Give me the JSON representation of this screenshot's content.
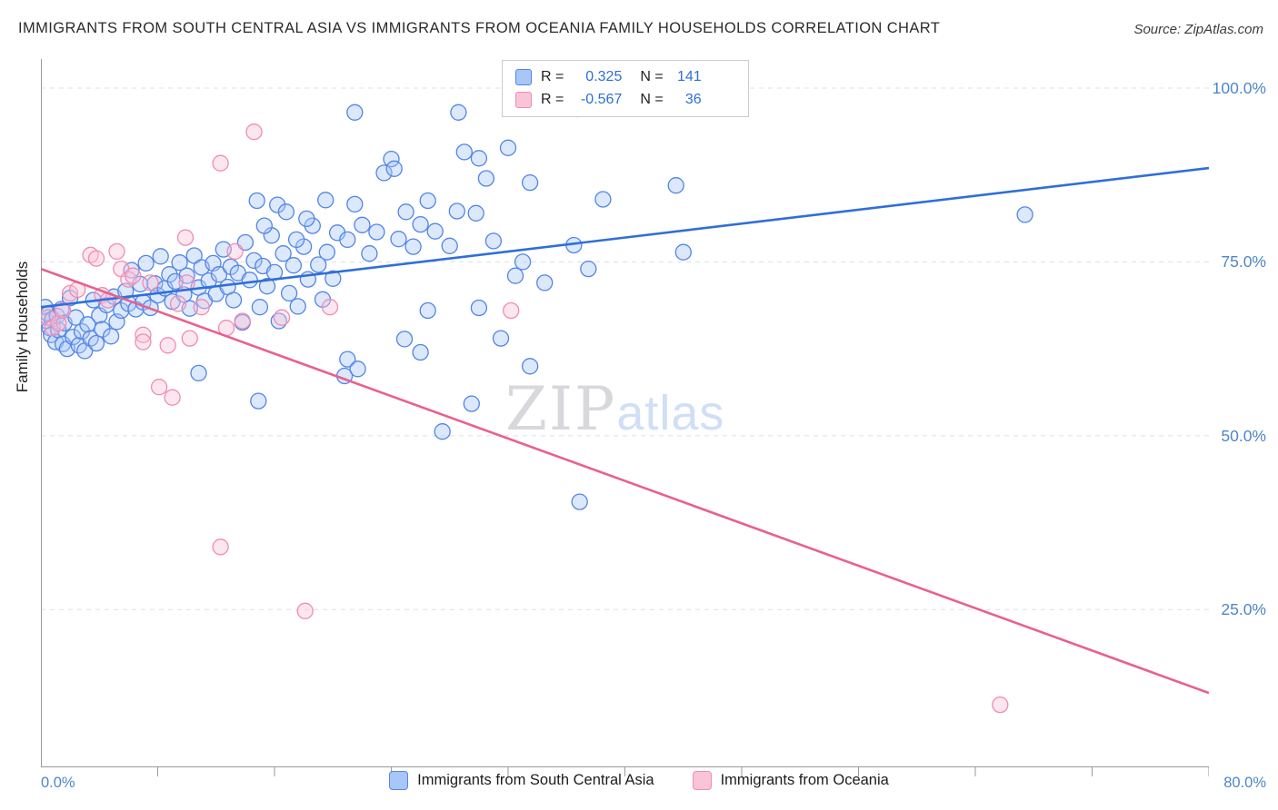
{
  "header": {
    "title": "IMMIGRANTS FROM SOUTH CENTRAL ASIA VS IMMIGRANTS FROM OCEANIA FAMILY HOUSEHOLDS CORRELATION CHART",
    "source": "Source: ZipAtlas.com"
  },
  "axes": {
    "y_label": "Family Households",
    "y_ticks": [
      "100.0%",
      "75.0%",
      "50.0%",
      "25.0%"
    ],
    "x_min_label": "0.0%",
    "x_max_label": "80.0%"
  },
  "legend_box": {
    "rows": [
      {
        "r_label": "R =",
        "r_value": "0.325",
        "n_label": "N =",
        "n_value": "141"
      },
      {
        "r_label": "R =",
        "r_value": "-0.567",
        "n_label": "N =",
        "n_value": "36"
      }
    ]
  },
  "bottom_legend": {
    "items": [
      {
        "label": "Immigrants from South Central Asia"
      },
      {
        "label": "Immigrants from Oceania"
      }
    ]
  },
  "watermark": {
    "part1": "ZIP",
    "part2": "atlas"
  },
  "colors": {
    "blue_fill": "#A8C6F8",
    "blue_stroke": "#5285E8",
    "blue_line": "#2F6FD8",
    "pink_fill": "#F9C4D8",
    "pink_stroke": "#F08BB4",
    "pink_line": "#E8618C",
    "stat_value_blue": "#2E6FD6",
    "axis_label_blue": "#4E86C8",
    "grid": "#DFDFDF",
    "axis": "#9A9A9A"
  },
  "chart_data": {
    "type": "scatter",
    "title": "Immigrants from South Central Asia vs Immigrants from Oceania Family Households Correlation Chart",
    "xlabel": "",
    "ylabel": "Family Households",
    "xlim": [
      0,
      80
    ],
    "ylim": [
      0,
      100
    ],
    "x_unit": "%",
    "y_unit": "%",
    "grid": "horizontal-dashed",
    "y_gridlines": [
      100,
      75,
      50,
      25
    ],
    "legend_position": "top-center",
    "series": [
      {
        "name": "Immigrants from South Central Asia",
        "R": 0.325,
        "N": 141,
        "fill_color": "#A8C6F8",
        "stroke_color": "#5285E8",
        "points": [
          [
            0.3,
            68.5
          ],
          [
            0.4,
            66.5
          ],
          [
            0.5,
            67.5
          ],
          [
            0.6,
            65.5
          ],
          [
            0.7,
            64.5
          ],
          [
            0.8,
            66.8
          ],
          [
            1.0,
            63.5
          ],
          [
            1.1,
            67.2
          ],
          [
            1.2,
            65.2
          ],
          [
            1.4,
            68.2
          ],
          [
            1.5,
            63.2
          ],
          [
            1.6,
            66.2
          ],
          [
            1.8,
            62.5
          ],
          [
            2.0,
            69.8
          ],
          [
            2.2,
            64.2
          ],
          [
            2.4,
            67.0
          ],
          [
            2.6,
            63.0
          ],
          [
            2.8,
            65.0
          ],
          [
            3.0,
            62.2
          ],
          [
            3.2,
            66.0
          ],
          [
            3.4,
            64.0
          ],
          [
            3.6,
            69.5
          ],
          [
            3.8,
            63.3
          ],
          [
            4.0,
            67.3
          ],
          [
            4.2,
            65.3
          ],
          [
            4.5,
            68.8
          ],
          [
            4.8,
            64.3
          ],
          [
            5.0,
            70.0
          ],
          [
            5.2,
            66.4
          ],
          [
            5.5,
            68.0
          ],
          [
            5.8,
            70.8
          ],
          [
            6.0,
            69.0
          ],
          [
            6.2,
            73.8
          ],
          [
            6.5,
            68.2
          ],
          [
            6.8,
            71.8
          ],
          [
            7.0,
            69.2
          ],
          [
            7.2,
            74.8
          ],
          [
            7.5,
            68.4
          ],
          [
            7.8,
            71.9
          ],
          [
            8.0,
            70.2
          ],
          [
            8.2,
            75.8
          ],
          [
            8.5,
            71.2
          ],
          [
            8.8,
            73.2
          ],
          [
            9.0,
            69.3
          ],
          [
            9.2,
            72.2
          ],
          [
            9.5,
            74.9
          ],
          [
            9.8,
            70.3
          ],
          [
            10.0,
            73.0
          ],
          [
            10.2,
            68.3
          ],
          [
            10.5,
            75.9
          ],
          [
            10.8,
            71.3
          ],
          [
            11.0,
            74.2
          ],
          [
            11.2,
            69.4
          ],
          [
            11.5,
            72.3
          ],
          [
            11.8,
            74.8
          ],
          [
            12.0,
            70.4
          ],
          [
            12.2,
            73.2
          ],
          [
            12.5,
            76.8
          ],
          [
            12.8,
            71.4
          ],
          [
            13.0,
            74.3
          ],
          [
            13.2,
            69.5
          ],
          [
            13.5,
            73.4
          ],
          [
            13.8,
            66.3
          ],
          [
            14.0,
            77.8
          ],
          [
            14.3,
            72.4
          ],
          [
            14.6,
            75.2
          ],
          [
            15.0,
            68.5
          ],
          [
            15.2,
            74.4
          ],
          [
            15.5,
            71.5
          ],
          [
            15.8,
            78.8
          ],
          [
            16.0,
            73.5
          ],
          [
            16.3,
            66.5
          ],
          [
            16.6,
            76.2
          ],
          [
            17.0,
            70.5
          ],
          [
            17.3,
            74.5
          ],
          [
            17.6,
            68.6
          ],
          [
            18.0,
            77.2
          ],
          [
            18.3,
            72.5
          ],
          [
            18.6,
            80.2
          ],
          [
            19.0,
            74.6
          ],
          [
            19.3,
            69.6
          ],
          [
            19.6,
            76.4
          ],
          [
            20.0,
            72.6
          ],
          [
            10.8,
            59.0
          ],
          [
            14.9,
            55.0
          ],
          [
            14.8,
            83.8
          ],
          [
            15.3,
            80.2
          ],
          [
            16.2,
            83.2
          ],
          [
            16.8,
            82.2
          ],
          [
            17.5,
            78.2
          ],
          [
            18.2,
            81.2
          ],
          [
            19.5,
            83.9
          ],
          [
            20.3,
            79.2
          ],
          [
            21.0,
            78.2
          ],
          [
            21.5,
            83.3
          ],
          [
            22.0,
            80.3
          ],
          [
            22.5,
            76.2
          ],
          [
            23.0,
            79.3
          ],
          [
            23.5,
            87.8
          ],
          [
            24.0,
            89.8
          ],
          [
            24.5,
            78.3
          ],
          [
            25.0,
            82.2
          ],
          [
            25.5,
            77.2
          ],
          [
            26.0,
            80.4
          ],
          [
            26.5,
            83.8
          ],
          [
            27.0,
            79.4
          ],
          [
            28.0,
            77.3
          ],
          [
            29.0,
            90.8
          ],
          [
            30.0,
            89.9
          ],
          [
            28.5,
            82.3
          ],
          [
            21.5,
            96.5
          ],
          [
            28.6,
            96.5
          ],
          [
            24.2,
            88.4
          ],
          [
            32.0,
            91.4
          ],
          [
            30.5,
            87.0
          ],
          [
            33.5,
            86.4
          ],
          [
            29.8,
            82.0
          ],
          [
            33.0,
            75.0
          ],
          [
            34.5,
            72.0
          ],
          [
            30.0,
            68.4
          ],
          [
            31.5,
            64.0
          ],
          [
            24.9,
            63.9
          ],
          [
            26.0,
            62.0
          ],
          [
            21.0,
            61.0
          ],
          [
            20.8,
            58.6
          ],
          [
            21.7,
            59.6
          ],
          [
            27.5,
            50.6
          ],
          [
            29.5,
            54.6
          ],
          [
            33.5,
            60.0
          ],
          [
            37.5,
            74.0
          ],
          [
            36.5,
            77.4
          ],
          [
            38.5,
            84.0
          ],
          [
            31.0,
            78.0
          ],
          [
            32.5,
            73.0
          ],
          [
            26.5,
            68.0
          ],
          [
            41.5,
            97.4
          ],
          [
            36.7,
            97.0
          ],
          [
            43.5,
            86.0
          ],
          [
            36.9,
            40.5
          ],
          [
            44.0,
            76.4
          ],
          [
            67.4,
            81.8
          ]
        ]
      },
      {
        "name": "Immigrants from Oceania",
        "R": -0.567,
        "N": 36,
        "fill_color": "#F9C4D8",
        "stroke_color": "#F08BB4",
        "points": [
          [
            0.5,
            67.0
          ],
          [
            0.8,
            65.5
          ],
          [
            1.2,
            66.2
          ],
          [
            1.5,
            68.0
          ],
          [
            2.0,
            70.5
          ],
          [
            2.5,
            71.0
          ],
          [
            3.4,
            76.0
          ],
          [
            3.8,
            75.5
          ],
          [
            4.2,
            70.2
          ],
          [
            4.6,
            69.5
          ],
          [
            5.2,
            76.5
          ],
          [
            5.5,
            74.0
          ],
          [
            6.0,
            72.5
          ],
          [
            6.3,
            73.0
          ],
          [
            7.0,
            64.5
          ],
          [
            7.5,
            72.0
          ],
          [
            8.1,
            57.0
          ],
          [
            9.0,
            55.5
          ],
          [
            8.7,
            63.0
          ],
          [
            7.0,
            63.5
          ],
          [
            9.9,
            78.5
          ],
          [
            10.0,
            72.0
          ],
          [
            9.4,
            69.0
          ],
          [
            11.0,
            68.5
          ],
          [
            12.3,
            89.2
          ],
          [
            14.6,
            93.7
          ],
          [
            12.3,
            34.0
          ],
          [
            18.1,
            24.8
          ],
          [
            13.8,
            66.5
          ],
          [
            12.7,
            65.5
          ],
          [
            10.2,
            64.0
          ],
          [
            13.3,
            76.5
          ],
          [
            16.5,
            67.0
          ],
          [
            19.8,
            68.5
          ],
          [
            32.2,
            68.0
          ],
          [
            65.7,
            11.3
          ]
        ]
      }
    ],
    "trend_lines": [
      {
        "series": "Immigrants from South Central Asia",
        "color": "#2F6FD8",
        "x": [
          0,
          80
        ],
        "y": [
          68.5,
          88.5
        ]
      },
      {
        "series": "Immigrants from Oceania",
        "color": "#E8618C",
        "x": [
          0,
          80
        ],
        "y": [
          74.0,
          13.0
        ]
      }
    ]
  }
}
